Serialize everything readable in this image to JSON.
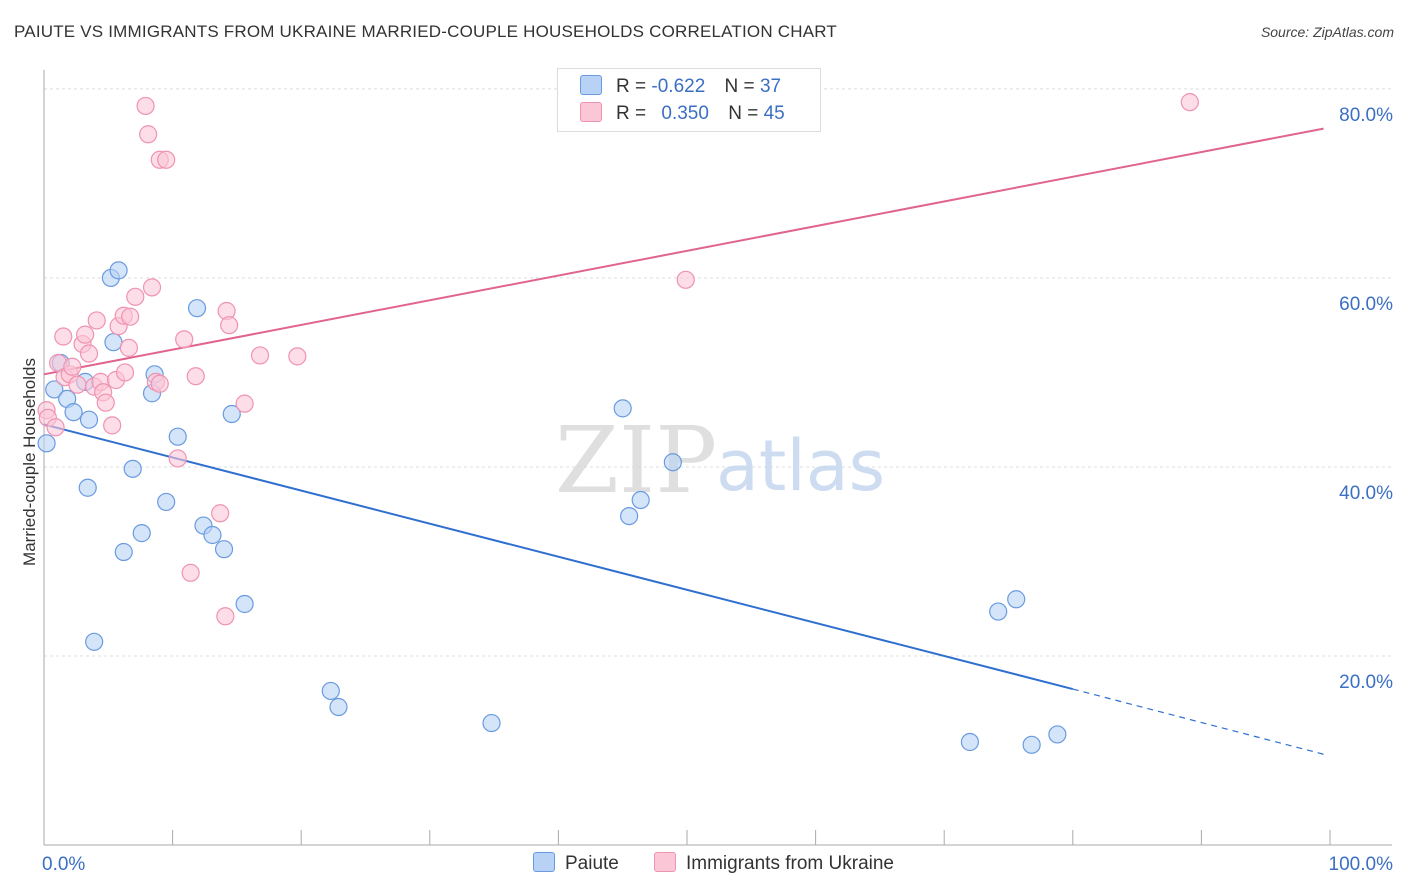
{
  "header": {
    "title": "PAIUTE VS IMMIGRANTS FROM UKRAINE MARRIED-COUPLE HOUSEHOLDS CORRELATION CHART",
    "source": "Source: ZipAtlas.com"
  },
  "watermark": {
    "zip": "ZIP",
    "atlas": "atlas"
  },
  "legend": {
    "rows": [
      {
        "r_label": "R =",
        "r_value": "-0.622",
        "n_label": "N =",
        "n_value": "37"
      },
      {
        "r_label": "R =",
        "r_value": "0.350",
        "n_label": "N =",
        "n_value": "45"
      }
    ]
  },
  "colors": {
    "paiute_fill": "#b8d2f5",
    "paiute_stroke": "#6a9be0",
    "paiute_line": "#2f6fcf",
    "ukraine_fill": "#fbc7d7",
    "ukraine_stroke": "#ef93b1",
    "ukraine_line": "#e0648e",
    "axis_text": "#3b6fc4",
    "grid": "#dddddd"
  },
  "chart_data": {
    "type": "scatter",
    "title": "PAIUTE VS IMMIGRANTS FROM UKRAINE MARRIED-COUPLE HOUSEHOLDS CORRELATION CHART",
    "xlabel": "",
    "ylabel": "Married-couple Households",
    "xlim": [
      0,
      100
    ],
    "ylim": [
      0,
      82
    ],
    "x_tick_labels": [
      "0.0%",
      "100.0%"
    ],
    "y_ticks": [
      20,
      40,
      60,
      80
    ],
    "y_tick_labels": [
      "20.0%",
      "40.0%",
      "60.0%",
      "80.0%"
    ],
    "grid": true,
    "legend_position": "bottom",
    "series": [
      {
        "name": "Paiute",
        "r": -0.622,
        "n": 37,
        "points": [
          [
            0.2,
            42.5
          ],
          [
            0.8,
            48.2
          ],
          [
            1.3,
            51.0
          ],
          [
            1.8,
            47.2
          ],
          [
            2.3,
            45.8
          ],
          [
            3.2,
            49.0
          ],
          [
            3.5,
            45.0
          ],
          [
            3.4,
            37.8
          ],
          [
            3.9,
            21.5
          ],
          [
            5.2,
            60.0
          ],
          [
            5.4,
            53.2
          ],
          [
            5.8,
            60.8
          ],
          [
            6.2,
            31.0
          ],
          [
            6.9,
            39.8
          ],
          [
            7.6,
            33.0
          ],
          [
            8.4,
            47.8
          ],
          [
            8.6,
            49.8
          ],
          [
            9.5,
            36.3
          ],
          [
            10.4,
            43.2
          ],
          [
            11.9,
            56.8
          ],
          [
            12.4,
            33.8
          ],
          [
            13.1,
            32.8
          ],
          [
            14.0,
            31.3
          ],
          [
            14.6,
            45.6
          ],
          [
            15.6,
            25.5
          ],
          [
            22.3,
            16.3
          ],
          [
            22.9,
            14.6
          ],
          [
            34.8,
            12.9
          ],
          [
            45.0,
            46.2
          ],
          [
            45.5,
            34.8
          ],
          [
            46.4,
            36.5
          ],
          [
            48.9,
            40.5
          ],
          [
            72.0,
            10.9
          ],
          [
            74.2,
            24.7
          ],
          [
            75.6,
            26.0
          ],
          [
            76.8,
            10.6
          ],
          [
            78.8,
            11.7
          ]
        ],
        "trend": {
          "x0": 0,
          "y0": 44.5,
          "x1": 80,
          "y1": 16.5,
          "dash_to_x": 99.5,
          "dash_to_y": 9.6
        }
      },
      {
        "name": "Immigrants from Ukraine",
        "r": 0.35,
        "n": 45,
        "points": [
          [
            0.2,
            46.0
          ],
          [
            0.3,
            45.2
          ],
          [
            0.9,
            44.2
          ],
          [
            1.1,
            51.0
          ],
          [
            1.6,
            49.5
          ],
          [
            2.0,
            49.8
          ],
          [
            2.2,
            50.6
          ],
          [
            2.6,
            48.7
          ],
          [
            3.0,
            53.0
          ],
          [
            3.2,
            54.0
          ],
          [
            3.5,
            52.0
          ],
          [
            3.9,
            48.5
          ],
          [
            4.1,
            55.5
          ],
          [
            4.4,
            49.0
          ],
          [
            4.6,
            47.9
          ],
          [
            4.8,
            46.8
          ],
          [
            5.3,
            44.4
          ],
          [
            5.6,
            49.2
          ],
          [
            5.8,
            54.9
          ],
          [
            6.2,
            56.0
          ],
          [
            6.3,
            50.0
          ],
          [
            6.6,
            52.6
          ],
          [
            6.7,
            55.9
          ],
          [
            7.1,
            58.0
          ],
          [
            7.9,
            78.2
          ],
          [
            8.1,
            75.2
          ],
          [
            8.4,
            59.0
          ],
          [
            8.7,
            49.0
          ],
          [
            9.0,
            48.8
          ],
          [
            9.0,
            72.5
          ],
          [
            9.5,
            72.5
          ],
          [
            10.4,
            40.9
          ],
          [
            10.9,
            53.5
          ],
          [
            11.4,
            28.8
          ],
          [
            11.8,
            49.6
          ],
          [
            13.7,
            35.1
          ],
          [
            14.1,
            24.2
          ],
          [
            14.2,
            56.5
          ],
          [
            14.4,
            55.0
          ],
          [
            15.6,
            46.7
          ],
          [
            16.8,
            51.8
          ],
          [
            19.7,
            51.7
          ],
          [
            49.9,
            59.8
          ],
          [
            89.1,
            78.6
          ],
          [
            1.5,
            53.8
          ]
        ],
        "trend": {
          "x0": 0,
          "y0": 49.8,
          "x1": 99.5,
          "y1": 75.8
        }
      }
    ]
  }
}
